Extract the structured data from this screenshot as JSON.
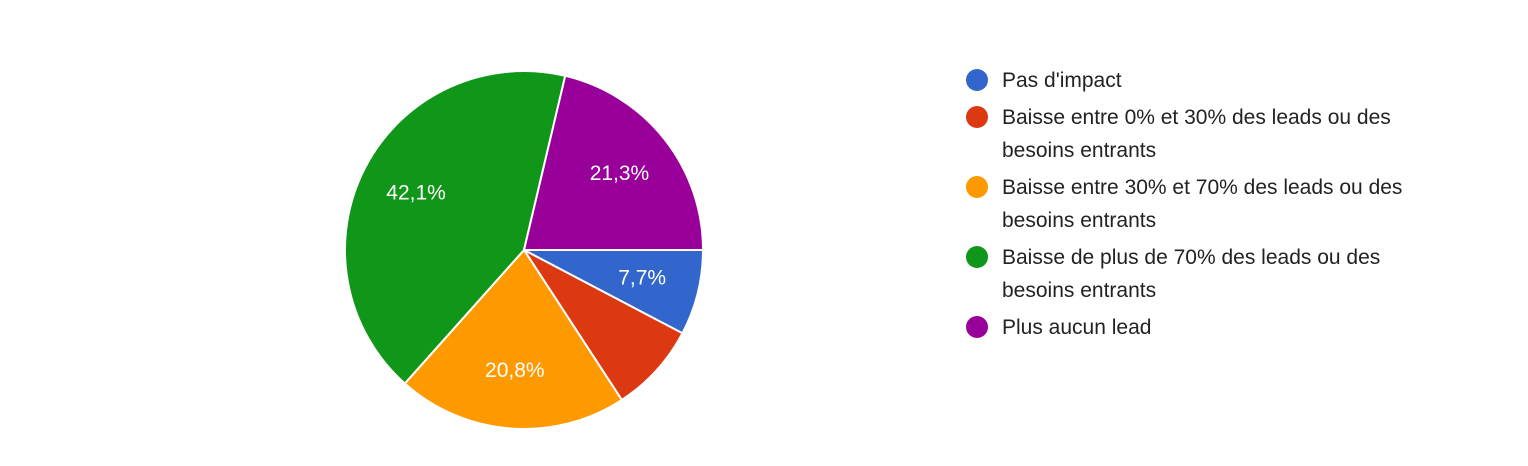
{
  "chart_data": {
    "type": "pie",
    "categories": [
      "Pas d'impact",
      "Baisse entre 0% et 30% des leads ou des besoins entrants",
      "Baisse entre 30% et 70% des leads ou des besoins entrants",
      "Baisse de plus de 70% des leads ou des besoins entrants",
      "Plus aucun lead"
    ],
    "values": [
      7.7,
      8.1,
      20.8,
      42.1,
      21.3
    ],
    "value_labels": [
      "7,7%",
      null,
      "20,8%",
      "42,1%",
      "21,3%"
    ],
    "colors": [
      "#3366cc",
      "#dc3912",
      "#ff9900",
      "#109618",
      "#990099"
    ]
  }
}
